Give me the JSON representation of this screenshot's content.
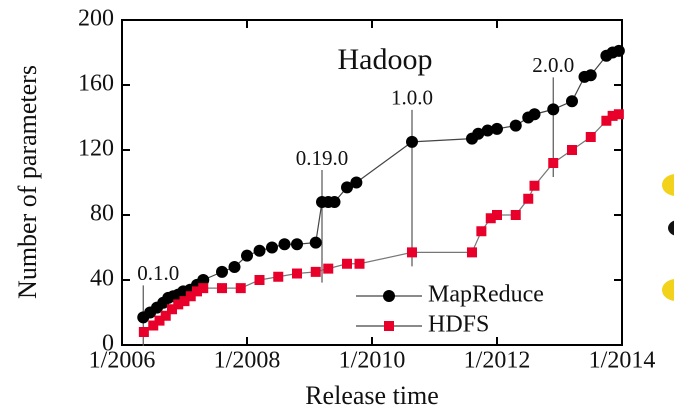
{
  "chart_data": {
    "type": "line",
    "title": "Hadoop",
    "x_label": "Release time",
    "y_label": "Number of parameters",
    "xlim": [
      2006,
      2014
    ],
    "ylim": [
      0,
      200
    ],
    "xticks": [
      {
        "value": 2006,
        "label": "1/2006"
      },
      {
        "value": 2008,
        "label": "1/2008"
      },
      {
        "value": 2010,
        "label": "1/2010"
      },
      {
        "value": 2012,
        "label": "1/2012"
      },
      {
        "value": 2014,
        "label": "1/2014"
      }
    ],
    "yticks": [
      0,
      40,
      80,
      120,
      160,
      200
    ],
    "legend": "lower right",
    "series": [
      {
        "name": "MapReduce",
        "color": "#000000",
        "marker": "circle",
        "x": [
          2006.34,
          2006.45,
          2006.56,
          2006.66,
          2006.74,
          2006.82,
          2006.9,
          2006.98,
          2007.09,
          2007.2,
          2007.3,
          2007.6,
          2007.8,
          2008.0,
          2008.2,
          2008.4,
          2008.6,
          2008.8,
          2009.1,
          2009.2,
          2009.3,
          2009.4,
          2009.6,
          2009.75,
          2010.64,
          2011.6,
          2011.7,
          2011.85,
          2012.0,
          2012.3,
          2012.5,
          2012.6,
          2012.9,
          2013.2,
          2013.4,
          2013.5,
          2013.75,
          2013.85,
          2013.95
        ],
        "values": [
          17,
          20,
          23,
          26,
          29,
          30,
          31,
          33,
          34,
          37,
          40,
          45,
          48,
          55,
          58,
          60,
          62,
          62,
          63,
          88,
          88,
          88,
          97,
          100,
          125,
          127,
          130,
          132,
          133,
          135,
          140,
          142,
          145,
          150,
          165,
          166,
          178,
          180,
          181
        ]
      },
      {
        "name": "HDFS",
        "color": "#e8002a",
        "marker": "square",
        "x": [
          2006.35,
          2006.5,
          2006.6,
          2006.7,
          2006.8,
          2006.9,
          2007.0,
          2007.1,
          2007.2,
          2007.3,
          2007.6,
          2007.9,
          2008.2,
          2008.5,
          2008.8,
          2009.1,
          2009.3,
          2009.6,
          2009.8,
          2010.64,
          2011.6,
          2011.75,
          2011.9,
          2012.0,
          2012.3,
          2012.5,
          2012.6,
          2012.9,
          2013.2,
          2013.5,
          2013.75,
          2013.85,
          2013.95
        ],
        "values": [
          8,
          12,
          15,
          18,
          22,
          25,
          27,
          30,
          33,
          35,
          35,
          35,
          40,
          42,
          44,
          45,
          47,
          50,
          50,
          57,
          57,
          70,
          78,
          80,
          80,
          90,
          98,
          112,
          120,
          128,
          138,
          141,
          142
        ]
      }
    ],
    "annotations": [
      {
        "text": "0.1.0",
        "x": 2006.34
      },
      {
        "text": "0.19.0",
        "x": 2009.2
      },
      {
        "text": "1.0.0",
        "x": 2010.64
      },
      {
        "text": "2.0.0",
        "x": 2012.9
      }
    ]
  }
}
